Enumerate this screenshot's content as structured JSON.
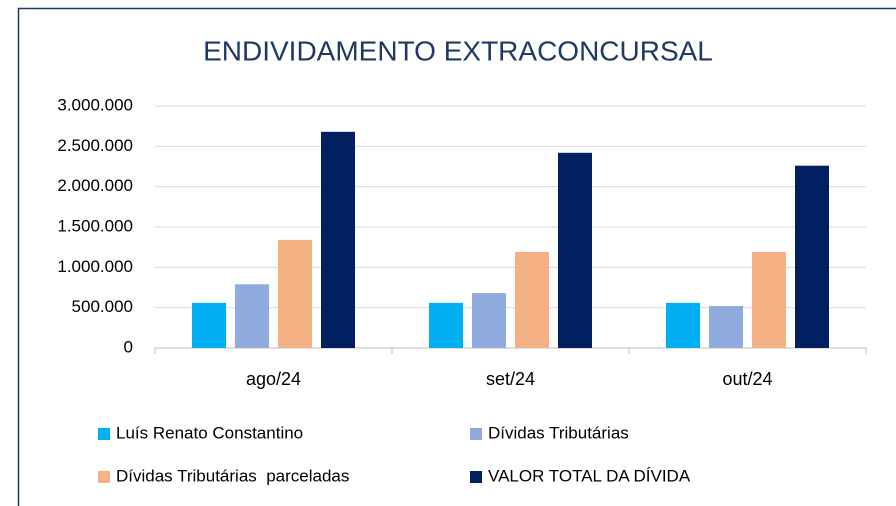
{
  "chart_data": {
    "type": "bar",
    "title": "ENDIVIDAMENTO EXTRACONCURSAL",
    "categories": [
      "ago/24",
      "set/24",
      "out/24"
    ],
    "series": [
      {
        "name": "Luís Renato Constantino",
        "color": "#00b0f0",
        "values": [
          560000,
          560000,
          560000
        ]
      },
      {
        "name": "Dívidas Tributárias",
        "color": "#8faadc",
        "values": [
          790000,
          680000,
          520000
        ]
      },
      {
        "name": "Dívidas Tributárias  parceladas",
        "color": "#f4b183",
        "values": [
          1340000,
          1190000,
          1190000
        ]
      },
      {
        "name": "VALOR TOTAL DA DÍVIDA",
        "color": "#002060",
        "values": [
          2680000,
          2420000,
          2260000
        ]
      }
    ],
    "ylim": [
      0,
      3000000
    ],
    "yticks": [
      0,
      {
        "value": 500000,
        "label": "500.000"
      },
      {
        "value": 1000000,
        "label": "1.000.000"
      },
      {
        "value": 1500000,
        "label": "1.500.000"
      },
      {
        "value": 2000000,
        "label": "2.000.000"
      },
      {
        "value": 2500000,
        "label": "2.500.000"
      },
      {
        "value": 3000000,
        "label": "3.000.000"
      }
    ],
    "grid": true,
    "legend": "bottom"
  }
}
